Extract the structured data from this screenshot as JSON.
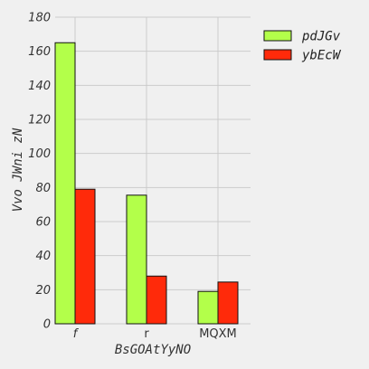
{
  "chart_data": {
    "type": "bar",
    "categories": [
      "f",
      "r",
      "MQXM"
    ],
    "series": [
      {
        "name": "pdJGv",
        "values": [
          165,
          75.5,
          19
        ],
        "color": "#b3ff4a"
      },
      {
        "name": "ybEcW",
        "values": [
          79,
          28,
          24.5
        ],
        "color": "#ff2a0a"
      }
    ],
    "xlabel": "BsGOAtYyNO",
    "ylabel": "Vvo JWni zN",
    "ylim": [
      0,
      180
    ],
    "yticks": [
      0,
      20,
      40,
      60,
      80,
      100,
      120,
      140,
      160,
      180
    ],
    "grid": true,
    "legend_position": "top-right",
    "background": "#f0f0f0",
    "grid_color": "#cbcbcb"
  }
}
